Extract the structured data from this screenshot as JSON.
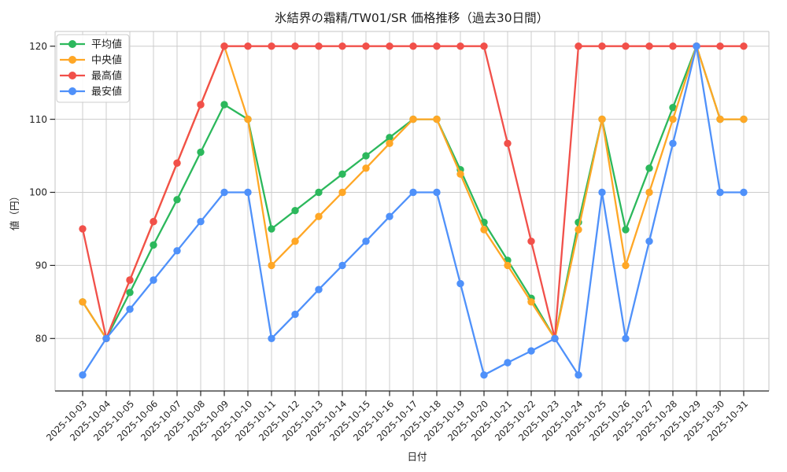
{
  "chart_data": {
    "type": "line",
    "title": "氷結界の霜精/TW01/SR  価格推移（過去30日間）",
    "xlabel": "日付",
    "ylabel": "値（円）",
    "categories": [
      "2025-10-03",
      "2025-10-04",
      "2025-10-05",
      "2025-10-06",
      "2025-10-07",
      "2025-10-08",
      "2025-10-09",
      "2025-10-10",
      "2025-10-11",
      "2025-10-12",
      "2025-10-13",
      "2025-10-14",
      "2025-10-15",
      "2025-10-16",
      "2025-10-17",
      "2025-10-18",
      "2025-10-19",
      "2025-10-20",
      "2025-10-21",
      "2025-10-22",
      "2025-10-23",
      "2025-10-24",
      "2025-10-25",
      "2025-10-26",
      "2025-10-27",
      "2025-10-28",
      "2025-10-29",
      "2025-10-30",
      "2025-10-31"
    ],
    "series": [
      {
        "key": "average",
        "name": "平均値",
        "color": "#2cb85c",
        "values": [
          85,
          80,
          86.3,
          92.8,
          99,
          105.5,
          112,
          110,
          95,
          97.5,
          100,
          102.5,
          105,
          107.5,
          110,
          110,
          103.1,
          95.9,
          90.7,
          85.5,
          80,
          95.9,
          110,
          94.9,
          103.3,
          111.6,
          120,
          110,
          110
        ]
      },
      {
        "key": "median",
        "name": "中央値",
        "color": "#ffa726",
        "values": [
          85,
          80,
          88,
          96,
          104,
          112,
          120,
          110,
          90,
          93.3,
          96.7,
          100,
          103.3,
          106.7,
          110,
          110,
          102.5,
          94.9,
          90,
          85,
          80,
          94.9,
          110,
          90,
          100,
          110,
          120,
          110,
          110
        ]
      },
      {
        "key": "max",
        "name": "最高値",
        "color": "#f1504a",
        "values": [
          95,
          80,
          88,
          96,
          104,
          112,
          120,
          120,
          120,
          120,
          120,
          120,
          120,
          120,
          120,
          120,
          120,
          120,
          106.7,
          93.3,
          80,
          120,
          120,
          120,
          120,
          120,
          120,
          120,
          120
        ]
      },
      {
        "key": "min",
        "name": "最安値",
        "color": "#4f91fa",
        "values": [
          75,
          80,
          84,
          88,
          92,
          96,
          100,
          100,
          80,
          83.3,
          86.7,
          90,
          93.3,
          96.7,
          100,
          100,
          87.5,
          75,
          76.7,
          78.3,
          80,
          75,
          100,
          80,
          93.3,
          106.7,
          120,
          100,
          100
        ]
      }
    ],
    "yticks": [
      80,
      90,
      100,
      110,
      120
    ],
    "ylim": [
      72.9,
      122.0
    ],
    "grid": true,
    "legend_position": "upper-left",
    "colors": {
      "grid": "#cccccc",
      "spine": "#c4c4c4",
      "axis": "#262626",
      "legend_border": "#cccccc",
      "background": "#ffffff"
    }
  }
}
